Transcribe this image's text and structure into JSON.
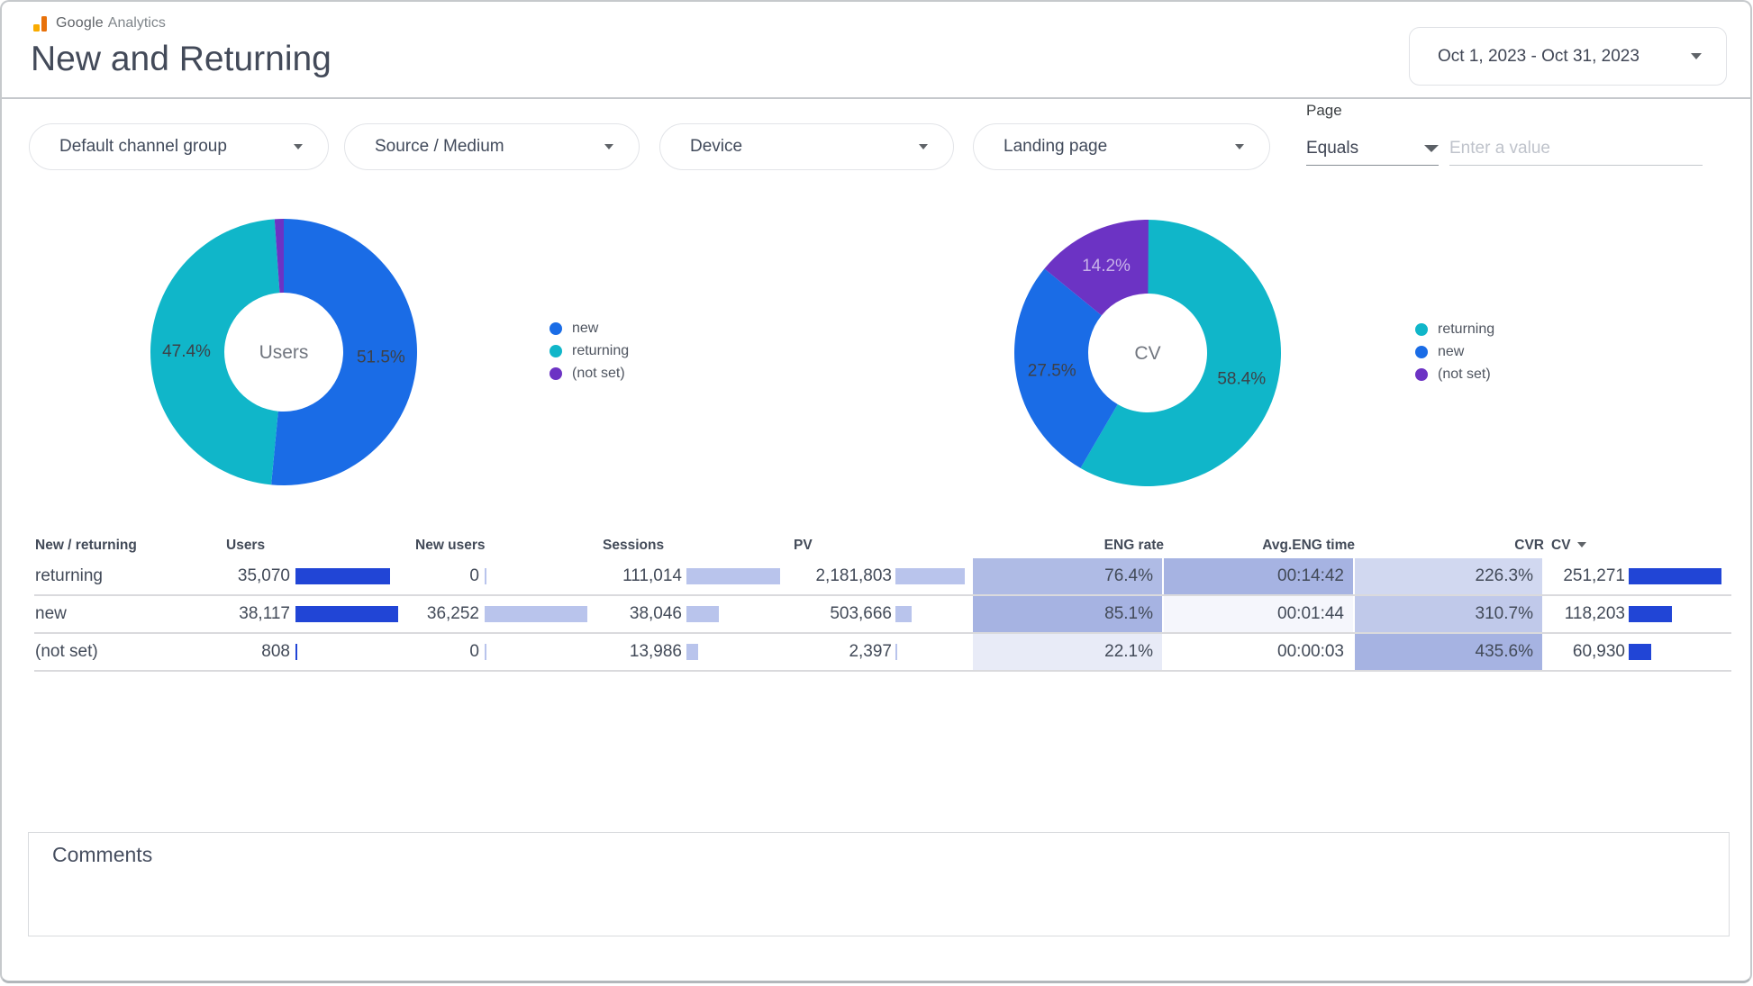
{
  "header": {
    "logo": {
      "brand": "Google",
      "product": "Analytics"
    },
    "title": "New and Returning",
    "date_range": {
      "value": "Oct 1, 2023 - Oct 31, 2023"
    }
  },
  "filters": {
    "dropdowns": [
      {
        "label": "Default channel group"
      },
      {
        "label": "Source / Medium"
      },
      {
        "label": "Device"
      },
      {
        "label": "Landing page"
      }
    ],
    "page_filter": {
      "label": "Page",
      "operator": "Equals",
      "input_placeholder": "Enter a value"
    }
  },
  "chart_data": [
    {
      "type": "pie",
      "subtype": "donut",
      "center_label": "Users",
      "slices": [
        {
          "label": "new",
          "pct": 51.5,
          "color": "#1a6ce6"
        },
        {
          "label": "returning",
          "pct": 47.4,
          "color": "#10b6c9"
        },
        {
          "label": "(not set)",
          "pct": 1.1,
          "color": "#6c33c4"
        }
      ],
      "legend_position": "right"
    },
    {
      "type": "pie",
      "subtype": "donut",
      "center_label": "CV",
      "slices": [
        {
          "label": "returning",
          "pct": 58.4,
          "color": "#10b6c9"
        },
        {
          "label": "new",
          "pct": 27.5,
          "color": "#1a6ce6"
        },
        {
          "label": "(not set)",
          "pct": 14.2,
          "color": "#6c33c4"
        }
      ],
      "legend_position": "right"
    }
  ],
  "table": {
    "headers": {
      "label": "New / returning",
      "users": "Users",
      "new_users": "New users",
      "sessions": "Sessions",
      "pv": "PV",
      "eng_rate": "ENG rate",
      "avg_eng_time": "Avg.ENG time",
      "cvr": "CVR",
      "cv": "CV"
    },
    "sort_column": "cv",
    "rows": [
      {
        "label": "returning",
        "users": "35,070",
        "new_users": "0",
        "sessions": "111,014",
        "pv": "2,181,803",
        "eng_rate": "76.4%",
        "avg_eng_time": "00:14:42",
        "cvr": "226.3%",
        "cv": "251,271"
      },
      {
        "label": "new",
        "users": "38,117",
        "new_users": "36,252",
        "sessions": "38,046",
        "pv": "503,666",
        "eng_rate": "85.1%",
        "avg_eng_time": "00:01:44",
        "cvr": "310.7%",
        "cv": "118,203"
      },
      {
        "label": "(not set)",
        "users": "808",
        "new_users": "0",
        "sessions": "13,986",
        "pv": "2,397",
        "eng_rate": "22.1%",
        "avg_eng_time": "00:00:03",
        "cvr": "435.6%",
        "cv": "60,930"
      }
    ]
  },
  "comments": {
    "label": "Comments"
  },
  "colors": {
    "bar_dark": "#2145d6",
    "bar_light": "#b9c4ec",
    "heat_max": "#a6b3e2",
    "slice_blue": "#1a6ce6",
    "slice_teal": "#10b6c9",
    "slice_purple": "#6c33c4"
  }
}
